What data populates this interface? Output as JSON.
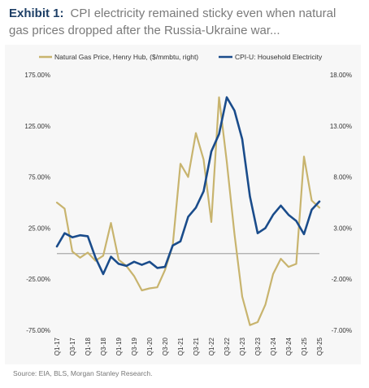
{
  "header": {
    "lead": "Exhibit 1:",
    "title": "CPI electricity remained sticky even when natural gas prices dropped after the Russia-Ukraine war..."
  },
  "source": "Source: EIA, BLS, Morgan Stanley Research.",
  "chart_data": {
    "type": "line",
    "categories": [
      "Q1-17",
      "Q2-17",
      "Q3-17",
      "Q4-17",
      "Q1-18",
      "Q2-18",
      "Q3-18",
      "Q4-18",
      "Q1-19",
      "Q2-19",
      "Q3-19",
      "Q4-19",
      "Q1-20",
      "Q2-20",
      "Q3-20",
      "Q4-20",
      "Q1-21",
      "Q2-21",
      "Q3-21",
      "Q4-21",
      "Q1-22",
      "Q2-22",
      "Q3-22",
      "Q4-22",
      "Q1-23",
      "Q2-23",
      "Q3-23",
      "Q4-23",
      "Q1-24",
      "Q2-24",
      "Q3-24",
      "Q4-24",
      "Q1-25",
      "Q2-25",
      "Q3-25"
    ],
    "tick_labels": [
      "Q1-17",
      "Q3-17",
      "Q1-18",
      "Q3-18",
      "Q1-19",
      "Q3-19",
      "Q1-20",
      "Q3-20",
      "Q1-21",
      "Q3-21",
      "Q1-22",
      "Q3-22",
      "Q1-23",
      "Q3-23",
      "Q1-24",
      "Q3-24",
      "Q1-25",
      "Q3-25"
    ],
    "series": [
      {
        "name": "Natural Gas Price, Henry Hub, ($/mmbtu, right)",
        "axis": "left",
        "color": "#c8b46e",
        "values": [
          50,
          44,
          2,
          -4,
          1,
          -7,
          -2,
          30,
          -6,
          -12,
          -22,
          -36,
          -34,
          -33,
          -16,
          8,
          88,
          75,
          118,
          92,
          31,
          153,
          90,
          19,
          -42,
          -70,
          -67,
          -50,
          -20,
          -5,
          -13,
          -10,
          95,
          52,
          45
        ]
      },
      {
        "name": "CPI-U: Household Electricity",
        "axis": "right",
        "color": "#1a4c8b",
        "values": [
          1.2,
          2.5,
          2.1,
          2.3,
          2.2,
          0.1,
          -1.5,
          0.2,
          -0.5,
          -0.7,
          -0.3,
          -0.6,
          -0.3,
          -0.9,
          -0.8,
          1.3,
          1.7,
          4.1,
          5.0,
          6.6,
          10.5,
          12.2,
          15.8,
          14.5,
          11.7,
          6.1,
          2.5,
          3.0,
          4.3,
          5.2,
          4.3,
          3.7,
          2.4,
          4.8,
          5.6
        ]
      }
    ],
    "y_left": {
      "min": -75,
      "max": 175,
      "ticks": [
        "175.00%",
        "125.00%",
        "75.00%",
        "25.00%",
        "-25.00%",
        "-75.00%"
      ]
    },
    "y_right": {
      "min": -7,
      "max": 18,
      "ticks": [
        "18.00%",
        "13.00%",
        "8.00%",
        "3.00%",
        "-2.00%",
        "-7.00%"
      ]
    },
    "baseline_left": 0,
    "legend_position": "top"
  }
}
